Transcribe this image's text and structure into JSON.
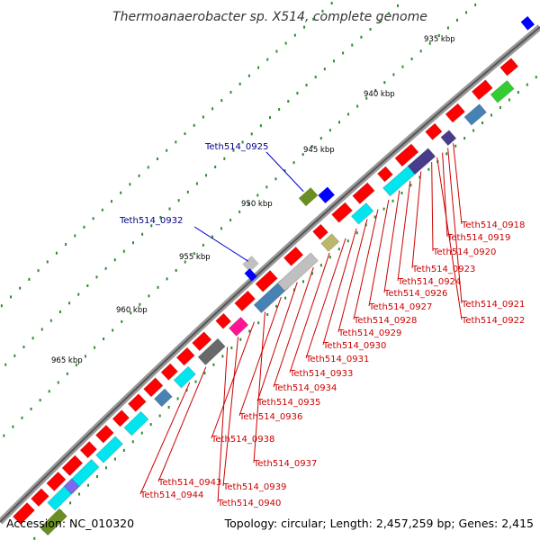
{
  "title": "Thermoanaerobacter sp. X514, complete genome",
  "accession": "Accession: NC_010320",
  "summary": "Topology: circular; Length: 2,457,259 bp; Genes: 2,415",
  "ticks": [
    "935 kbp",
    "940 kbp",
    "945 kbp",
    "950 kbp",
    "955 kbp",
    "960 kbp",
    "965 kbp"
  ],
  "labels_blue": [
    "Teth514_0925",
    "Teth514_0932"
  ],
  "labels_red": [
    "Teth514_0918",
    "Teth514_0919",
    "Teth514_0920",
    "Teth514_0923",
    "Teth514_0924",
    "Teth514_0926",
    "Teth514_0921",
    "Teth514_0927",
    "Teth514_0922",
    "Teth514_0928",
    "Teth514_0929",
    "Teth514_0930",
    "Teth514_0931",
    "Teth514_0933",
    "Teth514_0934",
    "Teth514_0935",
    "Teth514_0936",
    "Teth514_0938",
    "Teth514_0937",
    "Teth514_0943",
    "Teth514_0939",
    "Teth514_0944",
    "Teth514_0940"
  ],
  "colors": {
    "backbone": "#888888",
    "cds": "#ff0000",
    "tick_dots": "#2e8b2e",
    "red_label": "#cc0000",
    "blue_label": "#000080"
  }
}
